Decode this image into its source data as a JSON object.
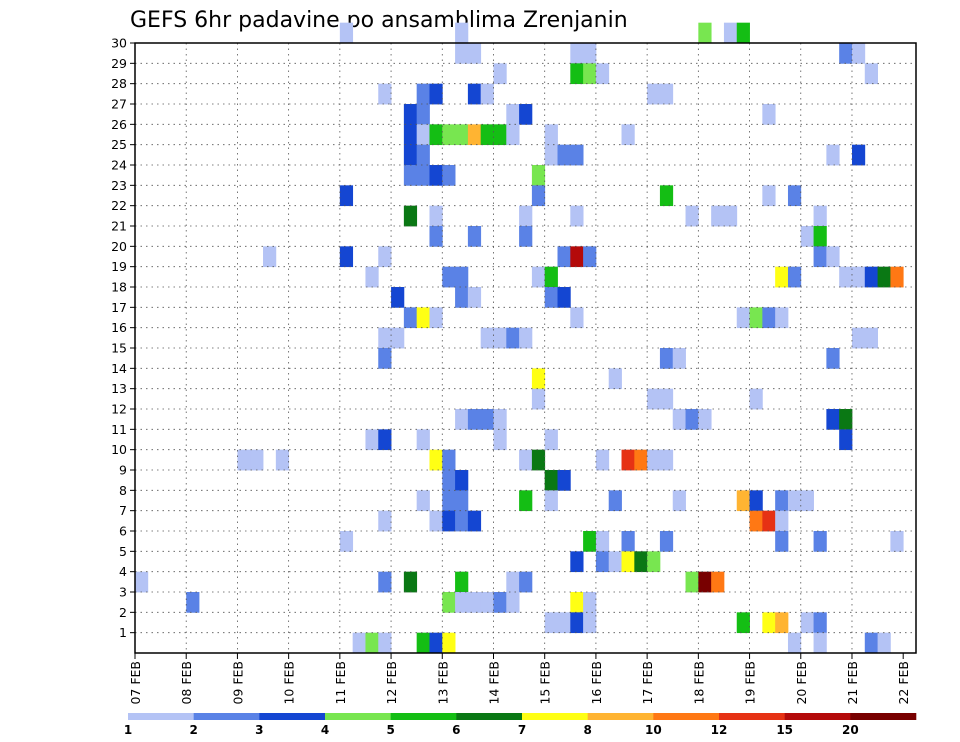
{
  "chart_data": {
    "type": "heatmap",
    "title": "GEFS 6hr padavine po ansamblima Zrenjanin",
    "xlabel": "",
    "ylabel": "",
    "x_tick_labels": [
      "07 FEB",
      "08 FEB",
      "09 FEB",
      "10 FEB",
      "11 FEB",
      "12 FEB",
      "13 FEB",
      "14 FEB",
      "15 FEB",
      "16 FEB",
      "17 FEB",
      "18 FEB",
      "19 FEB",
      "20 FEB",
      "21 FEB",
      "22 FEB"
    ],
    "y_tick_labels": [
      "1",
      "2",
      "3",
      "4",
      "5",
      "6",
      "7",
      "8",
      "9",
      "10",
      "11",
      "12",
      "13",
      "14",
      "15",
      "16",
      "17",
      "18",
      "19",
      "20",
      "21",
      "22",
      "23",
      "24",
      "25",
      "26",
      "27",
      "28",
      "29",
      "30"
    ],
    "ensemble_members": 30,
    "time_steps_per_day": 4,
    "grid": true,
    "colorbar": {
      "labels": [
        "1",
        "2",
        "3",
        "4",
        "5",
        "6",
        "7",
        "8",
        "10",
        "12",
        "15",
        "20"
      ],
      "colors": [
        "#b4c3f5",
        "#5a82e6",
        "#1446d2",
        "#78e650",
        "#14be14",
        "#0a7814",
        "#ffff14",
        "#ffb432",
        "#ff7814",
        "#e63214",
        "#b40a0a",
        "#780000"
      ]
    },
    "cells": [
      [
        30,
        16,
        0
      ],
      [
        30,
        25,
        0
      ],
      [
        30,
        44,
        3
      ],
      [
        30,
        46,
        0
      ],
      [
        30,
        47,
        4
      ],
      [
        29,
        25,
        0
      ],
      [
        29,
        26,
        0
      ],
      [
        29,
        34,
        0
      ],
      [
        29,
        35,
        0
      ],
      [
        29,
        55,
        1
      ],
      [
        29,
        56,
        0
      ],
      [
        28,
        28,
        0
      ],
      [
        28,
        34,
        4
      ],
      [
        28,
        35,
        3
      ],
      [
        28,
        36,
        0
      ],
      [
        28,
        57,
        0
      ],
      [
        27,
        19,
        0
      ],
      [
        27,
        22,
        1
      ],
      [
        27,
        23,
        2
      ],
      [
        27,
        26,
        2
      ],
      [
        27,
        27,
        0
      ],
      [
        27,
        40,
        0
      ],
      [
        27,
        41,
        0
      ],
      [
        26,
        21,
        2
      ],
      [
        26,
        22,
        1
      ],
      [
        26,
        29,
        0
      ],
      [
        26,
        30,
        2
      ],
      [
        26,
        49,
        0
      ],
      [
        25,
        21,
        2
      ],
      [
        25,
        22,
        0
      ],
      [
        25,
        23,
        4
      ],
      [
        25,
        24,
        3
      ],
      [
        25,
        25,
        3
      ],
      [
        25,
        26,
        7
      ],
      [
        25,
        27,
        4
      ],
      [
        25,
        28,
        4
      ],
      [
        25,
        29,
        0
      ],
      [
        25,
        32,
        0
      ],
      [
        25,
        38,
        0
      ],
      [
        24,
        21,
        2
      ],
      [
        24,
        22,
        1
      ],
      [
        24,
        32,
        0
      ],
      [
        24,
        33,
        1
      ],
      [
        24,
        34,
        1
      ],
      [
        24,
        54,
        0
      ],
      [
        24,
        56,
        2
      ],
      [
        23,
        21,
        1
      ],
      [
        23,
        22,
        1
      ],
      [
        23,
        23,
        2
      ],
      [
        23,
        24,
        1
      ],
      [
        23,
        31,
        3
      ],
      [
        22,
        16,
        2
      ],
      [
        22,
        31,
        1
      ],
      [
        22,
        41,
        4
      ],
      [
        22,
        49,
        0
      ],
      [
        22,
        51,
        1
      ],
      [
        21,
        21,
        5
      ],
      [
        21,
        23,
        0
      ],
      [
        21,
        30,
        0
      ],
      [
        21,
        34,
        0
      ],
      [
        21,
        43,
        0
      ],
      [
        21,
        45,
        0
      ],
      [
        21,
        46,
        0
      ],
      [
        21,
        53,
        0
      ],
      [
        20,
        23,
        1
      ],
      [
        20,
        26,
        1
      ],
      [
        20,
        30,
        1
      ],
      [
        20,
        52,
        0
      ],
      [
        20,
        53,
        4
      ],
      [
        19,
        10,
        0
      ],
      [
        19,
        16,
        2
      ],
      [
        19,
        19,
        0
      ],
      [
        19,
        33,
        1
      ],
      [
        19,
        34,
        10
      ],
      [
        19,
        35,
        1
      ],
      [
        19,
        53,
        1
      ],
      [
        19,
        54,
        0
      ],
      [
        18,
        18,
        0
      ],
      [
        18,
        24,
        1
      ],
      [
        18,
        25,
        1
      ],
      [
        18,
        31,
        0
      ],
      [
        18,
        32,
        4
      ],
      [
        18,
        50,
        6
      ],
      [
        18,
        51,
        1
      ],
      [
        18,
        55,
        0
      ],
      [
        18,
        56,
        0
      ],
      [
        18,
        57,
        2
      ],
      [
        18,
        58,
        5
      ],
      [
        18,
        59,
        8
      ],
      [
        17,
        20,
        2
      ],
      [
        17,
        25,
        1
      ],
      [
        17,
        26,
        0
      ],
      [
        17,
        32,
        1
      ],
      [
        17,
        33,
        2
      ],
      [
        16,
        21,
        1
      ],
      [
        16,
        22,
        6
      ],
      [
        16,
        23,
        0
      ],
      [
        16,
        34,
        0
      ],
      [
        16,
        47,
        0
      ],
      [
        16,
        48,
        3
      ],
      [
        16,
        49,
        1
      ],
      [
        16,
        50,
        0
      ],
      [
        15,
        19,
        0
      ],
      [
        15,
        20,
        0
      ],
      [
        15,
        27,
        0
      ],
      [
        15,
        28,
        0
      ],
      [
        15,
        29,
        1
      ],
      [
        15,
        30,
        0
      ],
      [
        15,
        56,
        0
      ],
      [
        15,
        57,
        0
      ],
      [
        14,
        19,
        1
      ],
      [
        14,
        41,
        1
      ],
      [
        14,
        42,
        0
      ],
      [
        14,
        54,
        1
      ],
      [
        13,
        31,
        6
      ],
      [
        13,
        37,
        0
      ],
      [
        12,
        31,
        0
      ],
      [
        12,
        40,
        0
      ],
      [
        12,
        41,
        0
      ],
      [
        12,
        48,
        0
      ],
      [
        11,
        25,
        0
      ],
      [
        11,
        26,
        1
      ],
      [
        11,
        27,
        1
      ],
      [
        11,
        28,
        0
      ],
      [
        11,
        42,
        0
      ],
      [
        11,
        43,
        1
      ],
      [
        11,
        44,
        0
      ],
      [
        11,
        54,
        2
      ],
      [
        11,
        55,
        5
      ],
      [
        10,
        18,
        0
      ],
      [
        10,
        19,
        2
      ],
      [
        10,
        22,
        0
      ],
      [
        10,
        28,
        0
      ],
      [
        10,
        32,
        0
      ],
      [
        10,
        55,
        2
      ],
      [
        9,
        8,
        0
      ],
      [
        9,
        9,
        0
      ],
      [
        9,
        11,
        0
      ],
      [
        9,
        23,
        6
      ],
      [
        9,
        24,
        1
      ],
      [
        9,
        30,
        0
      ],
      [
        9,
        31,
        5
      ],
      [
        9,
        36,
        0
      ],
      [
        9,
        38,
        9
      ],
      [
        9,
        39,
        8
      ],
      [
        9,
        40,
        0
      ],
      [
        9,
        41,
        0
      ],
      [
        8,
        24,
        1
      ],
      [
        8,
        25,
        2
      ],
      [
        8,
        32,
        5
      ],
      [
        8,
        33,
        2
      ],
      [
        7,
        22,
        0
      ],
      [
        7,
        24,
        1
      ],
      [
        7,
        25,
        1
      ],
      [
        7,
        30,
        4
      ],
      [
        7,
        32,
        0
      ],
      [
        7,
        37,
        1
      ],
      [
        7,
        42,
        0
      ],
      [
        7,
        47,
        7
      ],
      [
        7,
        48,
        2
      ],
      [
        7,
        50,
        1
      ],
      [
        7,
        51,
        0
      ],
      [
        7,
        52,
        0
      ],
      [
        6,
        19,
        0
      ],
      [
        6,
        23,
        0
      ],
      [
        6,
        24,
        2
      ],
      [
        6,
        25,
        1
      ],
      [
        6,
        26,
        2
      ],
      [
        6,
        48,
        8
      ],
      [
        6,
        49,
        9
      ],
      [
        6,
        50,
        0
      ],
      [
        5,
        16,
        0
      ],
      [
        5,
        35,
        4
      ],
      [
        5,
        36,
        0
      ],
      [
        5,
        38,
        1
      ],
      [
        5,
        41,
        1
      ],
      [
        5,
        50,
        1
      ],
      [
        5,
        53,
        1
      ],
      [
        5,
        59,
        0
      ],
      [
        4,
        34,
        2
      ],
      [
        4,
        36,
        1
      ],
      [
        4,
        37,
        0
      ],
      [
        4,
        38,
        6
      ],
      [
        4,
        39,
        5
      ],
      [
        4,
        40,
        3
      ],
      [
        3,
        0,
        0
      ],
      [
        3,
        19,
        1
      ],
      [
        3,
        21,
        5
      ],
      [
        3,
        25,
        4
      ],
      [
        3,
        29,
        0
      ],
      [
        3,
        30,
        1
      ],
      [
        3,
        43,
        3
      ],
      [
        3,
        44,
        11
      ],
      [
        3,
        45,
        8
      ],
      [
        2,
        4,
        1
      ],
      [
        2,
        24,
        3
      ],
      [
        2,
        25,
        0
      ],
      [
        2,
        26,
        0
      ],
      [
        2,
        27,
        0
      ],
      [
        2,
        28,
        1
      ],
      [
        2,
        29,
        0
      ],
      [
        2,
        34,
        6
      ],
      [
        2,
        35,
        0
      ],
      [
        1,
        32,
        0
      ],
      [
        1,
        33,
        0
      ],
      [
        1,
        34,
        2
      ],
      [
        1,
        35,
        0
      ],
      [
        1,
        47,
        4
      ],
      [
        1,
        49,
        6
      ],
      [
        1,
        50,
        7
      ],
      [
        1,
        52,
        0
      ],
      [
        1,
        53,
        1
      ],
      [
        0,
        17,
        0
      ],
      [
        0,
        18,
        3
      ],
      [
        0,
        19,
        0
      ],
      [
        0,
        22,
        4
      ],
      [
        0,
        23,
        2
      ],
      [
        0,
        24,
        6
      ],
      [
        0,
        51,
        0
      ],
      [
        0,
        53,
        0
      ],
      [
        0,
        57,
        1
      ],
      [
        0,
        58,
        0
      ]
    ]
  }
}
